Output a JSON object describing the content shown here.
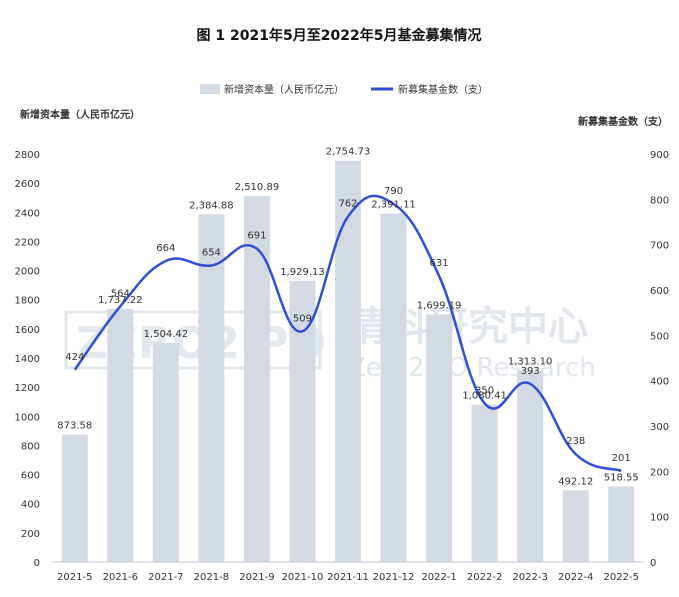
{
  "chart_data": {
    "type": "bar",
    "title": "图 1 2021年5月至2022年5月基金募集情况",
    "categories": [
      "2021-5",
      "2021-6",
      "2021-7",
      "2021-8",
      "2021-9",
      "2021-10",
      "2021-11",
      "2021-12",
      "2022-1",
      "2022-2",
      "2022-3",
      "2022-4",
      "2022-5"
    ],
    "series": [
      {
        "name": "新增资本量（人民币亿元）",
        "type": "bar",
        "axis": "left",
        "color": "#d4dae3",
        "values": [
          873.58,
          1737.22,
          1504.42,
          2384.88,
          2510.89,
          1929.13,
          2754.73,
          2391.11,
          1699.19,
          1080.41,
          1313.1,
          492.12,
          518.55
        ],
        "labels": [
          "873.58",
          "1,737.22",
          "1,504.42",
          "2,384.88",
          "2,510.89",
          "1,929.13",
          "2,754.73",
          "2,391.11",
          "1,699.19",
          "1,080.41",
          "1,313.10",
          "492.12",
          "518.55"
        ]
      },
      {
        "name": "新募集基金数（支）",
        "type": "line",
        "axis": "right",
        "color": "#2f4fd6",
        "values": [
          424,
          564,
          664,
          654,
          691,
          509,
          762,
          790,
          631,
          350,
          393,
          238,
          201
        ],
        "labels": [
          "424",
          "564",
          "664",
          "654",
          "691",
          "509",
          "762",
          "790",
          "631",
          "350",
          "393",
          "238",
          "201"
        ]
      }
    ],
    "ylabel": "新增资本量（人民币亿元）",
    "ylabel_right": "新募集基金数（支）",
    "ylim": [
      0,
      2800
    ],
    "ylim_right": [
      0,
      900
    ],
    "yticks": [
      "0",
      "200",
      "400",
      "600",
      "800",
      "1000",
      "1200",
      "1400",
      "1600",
      "1800",
      "2000",
      "2200",
      "2400",
      "2600",
      "2800"
    ],
    "yticks_right": [
      "0",
      "100",
      "200",
      "300",
      "400",
      "500",
      "600",
      "700",
      "800",
      "900"
    ],
    "grid": false,
    "legend": "top-center"
  },
  "watermark": {
    "logo": "ZERO2IPO",
    "cn": "清科研究中心",
    "en": "Zero2IPO Research"
  }
}
